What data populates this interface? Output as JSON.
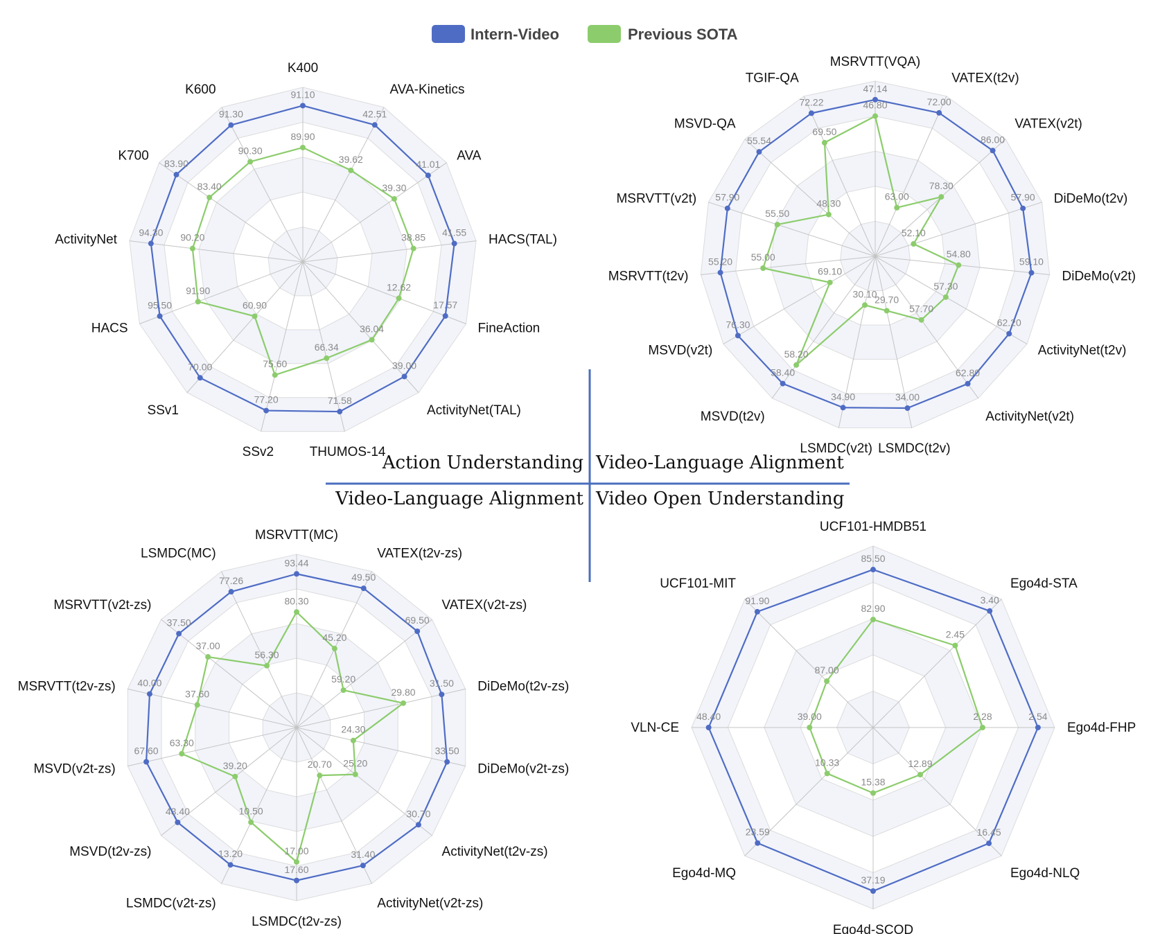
{
  "legend": {
    "series_a": "Intern-Video",
    "series_b": "Previous SOTA"
  },
  "colors": {
    "series_a": "#4f6cc4",
    "series_b": "#8ccc6c",
    "divider": "#4a6fbe"
  },
  "quadrant_labels": {
    "top_left": "Action Understanding",
    "top_right": "Video-Language Alignment",
    "bottom_left": "Video-Language Alignment",
    "bottom_right": "Video Open Understanding"
  },
  "chart_data": [
    {
      "type": "radar",
      "axes": [
        "K400",
        "AVA-Kinetics",
        "AVA",
        "HACS(TAL)",
        "FineAction",
        "ActivityNet(TAL)",
        "THUMOS-14",
        "SSv2",
        "SSv1",
        "HACS",
        "ActivityNet",
        "K700",
        "K600"
      ],
      "series": [
        {
          "name": "Intern-Video",
          "values": [
            "91.10",
            "42.51",
            "41.01",
            "41.55",
            "17.57",
            "39.00",
            "71.58",
            "77.20",
            "70.00",
            "95.50",
            "94.30",
            "83.90",
            "91.30"
          ]
        },
        {
          "name": "Previous SOTA",
          "values": [
            "89.90",
            "39.62",
            "39.30",
            "38.85",
            "12.62",
            "36.04",
            "66.34",
            "75.60",
            "60.90",
            "91.90",
            "90.20",
            "83.40",
            "90.30"
          ]
        }
      ]
    },
    {
      "type": "radar",
      "axes": [
        "MSRVTT(VQA)",
        "VATEX(t2v)",
        "VATEX(v2t)",
        "DiDeMo(t2v)",
        "DiDeMo(v2t)",
        "ActivityNet(t2v)",
        "ActivityNet(v2t)",
        "LSMDC(t2v)",
        "LSMDC(v2t)",
        "MSVD(t2v)",
        "MSVD(v2t)",
        "MSRVTT(t2v)",
        "MSRVTT(v2t)",
        "MSVD-QA",
        "TGIF-QA"
      ],
      "series": [
        {
          "name": "Intern-Video",
          "values": [
            "47.14",
            "72.00",
            "86.00",
            "57.90",
            "59.10",
            "62.20",
            "62.80",
            "34.00",
            "34.90",
            "58.40",
            "76.30",
            "55.20",
            "57.90",
            "55.54",
            "72.22"
          ]
        },
        {
          "name": "Previous SOTA",
          "values": [
            "46.80",
            "63.00",
            "78.30",
            "52.10",
            "54.80",
            "57.30",
            "57.70",
            "29.70",
            "30.10",
            "58.20",
            "69.10",
            "55.00",
            "55.50",
            "48.30",
            "69.50"
          ]
        }
      ]
    },
    {
      "type": "radar",
      "axes": [
        "MSRVTT(MC)",
        "VATEX(t2v-zs)",
        "VATEX(v2t-zs)",
        "DiDeMo(t2v-zs)",
        "DiDeMo(v2t-zs)",
        "ActivityNet(t2v-zs)",
        "ActivityNet(v2t-zs)",
        "LSMDC(t2v-zs)",
        "LSMDC(v2t-zs)",
        "MSVD(t2v-zs)",
        "MSVD(v2t-zs)",
        "MSRVTT(t2v-zs)",
        "MSRVTT(v2t-zs)",
        "LSMDC(MC)"
      ],
      "series": [
        {
          "name": "Intern-Video",
          "values": [
            "93.44",
            "49.50",
            "69.50",
            "31.50",
            "33.50",
            "30.70",
            "31.40",
            "17.60",
            "13.20",
            "43.40",
            "67.60",
            "40.00",
            "37.50",
            "77.26"
          ]
        },
        {
          "name": "Previous SOTA",
          "values": [
            "80.30",
            "45.20",
            "59.20",
            "29.80",
            "24.30",
            "25.20",
            "20.70",
            "17.00",
            "10.50",
            "39.20",
            "63.30",
            "37.60",
            "37.00",
            "56.30"
          ]
        }
      ]
    },
    {
      "type": "radar",
      "axes": [
        "UCF101-HMDB51",
        "Ego4d-STA",
        "Ego4d-FHP",
        "Ego4d-NLQ",
        "Ego4d-SCOD",
        "Ego4d-MQ",
        "VLN-CE",
        "UCF101-MIT"
      ],
      "series": [
        {
          "name": "Intern-Video",
          "values": [
            "85.50",
            "3.40",
            "2.54",
            "16.45",
            "37.19",
            "23.59",
            "48.40",
            "91.90"
          ]
        },
        {
          "name": "Previous SOTA",
          "values": [
            "82.90",
            "2.45",
            "2.28",
            "12.89",
            "15.38",
            "10.33",
            "39.00",
            "87.00"
          ]
        }
      ]
    }
  ]
}
